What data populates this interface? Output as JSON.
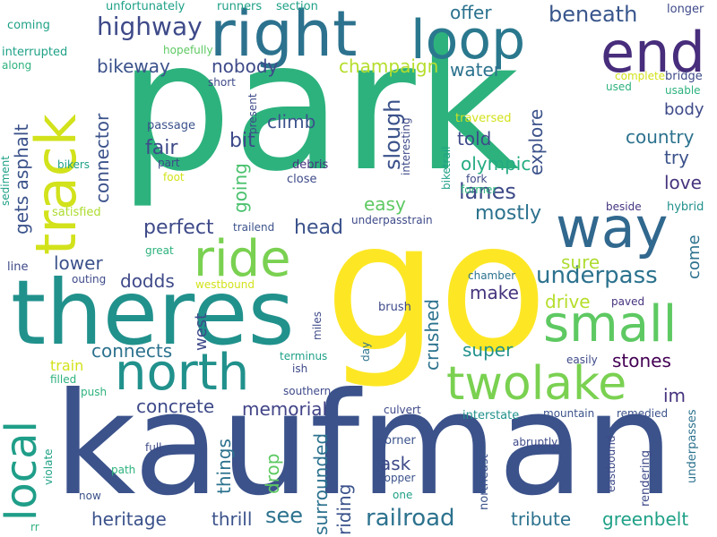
{
  "palette": {
    "background": "#ffffff",
    "c1": "#440154",
    "c2": "#46337e",
    "c3": "#365c8d",
    "c4": "#277f8e",
    "c5": "#1fa187",
    "c6": "#4ac16d",
    "c7": "#a0da39",
    "c8": "#fde725"
  },
  "words": {
    "park": "park",
    "go": "go",
    "kaufman": "kaufman",
    "theres": "theres",
    "right": "right",
    "track": "track",
    "loop": "loop",
    "end": "end",
    "way": "way",
    "north": "north",
    "twolake": "twolake",
    "small": "small",
    "ride": "ride",
    "local": "local",
    "highway": "highway",
    "beneath": "beneath",
    "underpass": "underpass",
    "railroad": "railroad",
    "slough": "slough",
    "lanes": "lanes",
    "mostly": "mostly",
    "champaign": "champaign",
    "water": "water",
    "bikeway": "bikeway",
    "nobody": "nobody",
    "offer": "offer",
    "connector": "connector",
    "climb": "climb",
    "fair": "fair",
    "bit": "bit",
    "going": "going",
    "perfect": "perfect",
    "head": "head",
    "country": "country",
    "try": "try",
    "love": "love",
    "body": "body",
    "told": "told",
    "olympic": "olympic",
    "easy": "easy",
    "explore": "explore",
    "come": "come",
    "sure": "sure",
    "drive": "drive",
    "make": "make",
    "dodds": "dodds",
    "lower": "lower",
    "connects": "connects",
    "west": "west",
    "super": "super",
    "stones": "stones",
    "crushed": "crushed",
    "concrete": "concrete",
    "memorial": "memorial",
    "things": "things",
    "drop": "drop",
    "surrounded": "surrounded",
    "riding": "riding",
    "ask": "ask",
    "heritage": "heritage",
    "thrill": "thrill",
    "see": "see",
    "tribute": "tribute",
    "greenbelt": "greenbelt",
    "im": "im",
    "train": "train",
    "gets": "gets",
    "asphalt": "asphalt",
    "coming": "coming",
    "unfortunately": "unfortunately",
    "runners": "runners",
    "section": "section",
    "longer": "longer",
    "interrupted": "interrupted",
    "along": "along",
    "hopefully": "hopefully",
    "complete": "complete",
    "bridge": "bridge",
    "usable": "usable",
    "used": "used",
    "short": "short",
    "present": "present",
    "passage": "passage",
    "traversed": "traversed",
    "part": "part",
    "foot": "foot",
    "bikers": "bikers",
    "debris": "debris",
    "close": "close",
    "interesting": "interesting",
    "biketrail": "biketrail",
    "former": "former",
    "fork": "fork",
    "sediment": "sediment",
    "satisfied": "satisfied",
    "trailend": "trailend",
    "underpasstrain": "underpasstrain",
    "beside": "beside",
    "hybrid": "hybrid",
    "great": "great",
    "line": "line",
    "outing": "outing",
    "westbound": "westbound",
    "chamber": "chamber",
    "paved": "paved",
    "brush": "brush",
    "miles": "miles",
    "terminus": "terminus",
    "ish": "ish",
    "day": "day",
    "easily": "easily",
    "filled": "filled",
    "push": "push",
    "southern": "southern",
    "culvert": "culvert",
    "interstate": "interstate",
    "mountain": "mountain",
    "remedied": "remedied",
    "underpasses": "underpasses",
    "full": "full",
    "violate": "violate",
    "corner": "corner",
    "abruptly": "abruptly",
    "northeast": "northeast",
    "eastbound": "eastbound",
    "rendering": "rendering",
    "path": "path",
    "copper": "copper",
    "now": "now",
    "one": "one",
    "rr": "rr"
  }
}
